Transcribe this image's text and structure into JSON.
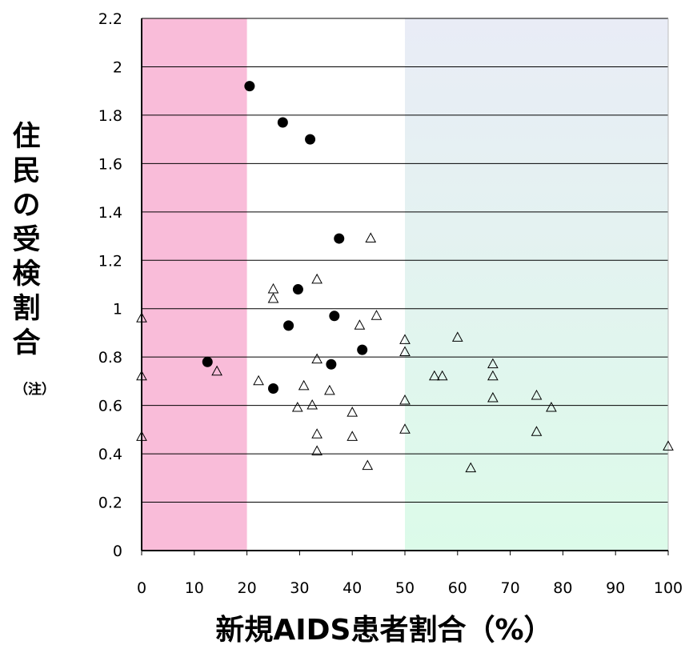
{
  "chart_data": {
    "type": "scatter",
    "title": "",
    "xlabel": "新規AIDS患者割合（%）",
    "ylabel": "住民の受検割合",
    "ylabel_note": "（注）",
    "xlim": [
      0,
      100
    ],
    "ylim": [
      0,
      2.2
    ],
    "xticks": [
      "0",
      "10",
      "20",
      "30",
      "40",
      "50",
      "60",
      "70",
      "80",
      "90",
      "100"
    ],
    "yticks": [
      "0",
      "0.2",
      "0.4",
      "0.6",
      "0.8",
      "1",
      "1.2",
      "1.4",
      "1.6",
      "1.8",
      "2",
      "2.2"
    ],
    "grid": "horizontal",
    "bands": [
      {
        "x0": 0,
        "x1": 20,
        "color": "#f9bcd9"
      },
      {
        "x0": 50,
        "x1": 100,
        "color_top": "#e9ecf6",
        "color_bottom": "#dcfbe9"
      }
    ],
    "series": [
      {
        "marker": "filled-circle",
        "color": "#000000",
        "points": [
          [
            20.5,
            1.92
          ],
          [
            26.8,
            1.77
          ],
          [
            32.0,
            1.7
          ],
          [
            37.5,
            1.29
          ],
          [
            29.7,
            1.08
          ],
          [
            27.9,
            0.93
          ],
          [
            36.6,
            0.97
          ],
          [
            41.9,
            0.83
          ],
          [
            36.0,
            0.77
          ],
          [
            25.0,
            0.67
          ],
          [
            12.5,
            0.78
          ]
        ]
      },
      {
        "marker": "open-triangle",
        "color": "#000000",
        "points": [
          [
            43.5,
            1.29
          ],
          [
            33.3,
            1.12
          ],
          [
            25.0,
            1.08
          ],
          [
            25.0,
            1.04
          ],
          [
            44.6,
            0.97
          ],
          [
            41.4,
            0.93
          ],
          [
            0,
            0.96
          ],
          [
            60.0,
            0.88
          ],
          [
            50.0,
            0.87
          ],
          [
            50.0,
            0.82
          ],
          [
            33.3,
            0.79
          ],
          [
            66.7,
            0.77
          ],
          [
            0,
            0.72
          ],
          [
            14.3,
            0.74
          ],
          [
            55.6,
            0.72
          ],
          [
            57.1,
            0.72
          ],
          [
            66.7,
            0.72
          ],
          [
            22.2,
            0.7
          ],
          [
            30.8,
            0.68
          ],
          [
            35.7,
            0.66
          ],
          [
            75.0,
            0.64
          ],
          [
            66.7,
            0.63
          ],
          [
            50.0,
            0.62
          ],
          [
            32.4,
            0.6
          ],
          [
            29.6,
            0.59
          ],
          [
            77.8,
            0.59
          ],
          [
            40.0,
            0.57
          ],
          [
            50.0,
            0.5
          ],
          [
            75.0,
            0.49
          ],
          [
            33.3,
            0.48
          ],
          [
            0,
            0.47
          ],
          [
            40.0,
            0.47
          ],
          [
            100.0,
            0.43
          ],
          [
            33.3,
            0.41
          ],
          [
            42.9,
            0.35
          ],
          [
            62.5,
            0.34
          ]
        ]
      }
    ]
  }
}
